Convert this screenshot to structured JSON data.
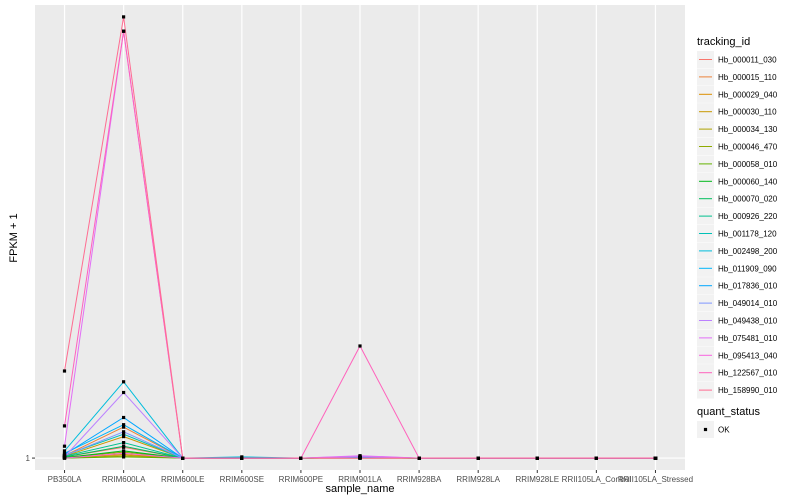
{
  "chart_data": {
    "type": "line",
    "xlabel": "sample_name",
    "ylabel": "FPKM + 1",
    "categories": [
      "PB350LA",
      "RRIM600LA",
      "RRIM600LE",
      "RRIM600SE",
      "RRIM600PE",
      "RRIM901LA",
      "RRIM928BA",
      "RRIM928LA",
      "RRIM928LE",
      "RRII105LA_Control",
      "RRII105LA_Stressed"
    ],
    "ylim": [
      0.5,
      20
    ],
    "y_ticks": [
      {
        "value": 1,
        "label": "1"
      }
    ],
    "grid": true,
    "legend_position": "right",
    "legend_title": "tracking_id",
    "shape_legend": {
      "title": "quant_status",
      "items": [
        {
          "label": "OK"
        }
      ]
    },
    "series": [
      {
        "name": "Hb_000011_030",
        "color": "#F8766D",
        "values": [
          1.05,
          1.45,
          1,
          1,
          1,
          1.01,
          1,
          1,
          1,
          1,
          1
        ]
      },
      {
        "name": "Hb_000015_110",
        "color": "#EC8239",
        "values": [
          1.1,
          2.3,
          1,
          1,
          1,
          1.02,
          1,
          1,
          1,
          1,
          1
        ]
      },
      {
        "name": "Hb_000029_040",
        "color": "#DB8E00",
        "values": [
          1.02,
          1.15,
          1,
          1,
          1,
          1.01,
          1,
          1,
          1,
          1,
          1
        ]
      },
      {
        "name": "Hb_000030_110",
        "color": "#C79800",
        "values": [
          1.08,
          1.9,
          1,
          1,
          1,
          1.02,
          1,
          1,
          1,
          1,
          1
        ]
      },
      {
        "name": "Hb_000034_130",
        "color": "#AEA200",
        "values": [
          1.0,
          1.1,
          1,
          1,
          1,
          1.0,
          1,
          1,
          1,
          1,
          1
        ]
      },
      {
        "name": "Hb_000046_470",
        "color": "#8FAA00",
        "values": [
          1.03,
          1.25,
          1,
          1,
          1,
          1.01,
          1,
          1,
          1,
          1,
          1
        ]
      },
      {
        "name": "Hb_000058_010",
        "color": "#64B200",
        "values": [
          1.0,
          1.05,
          1,
          1,
          1,
          1.0,
          1,
          1,
          1,
          1,
          1
        ]
      },
      {
        "name": "Hb_000060_140",
        "color": "#00B81B",
        "values": [
          1.02,
          1.3,
          1,
          1,
          1,
          1.01,
          1,
          1,
          1,
          1,
          1
        ]
      },
      {
        "name": "Hb_000070_020",
        "color": "#00BD5C",
        "values": [
          1.05,
          1.5,
          1,
          1,
          1,
          1.01,
          1,
          1,
          1,
          1,
          1
        ]
      },
      {
        "name": "Hb_000926_220",
        "color": "#00C08E",
        "values": [
          1.08,
          1.65,
          1,
          1,
          1,
          1.02,
          1,
          1,
          1,
          1,
          1
        ]
      },
      {
        "name": "Hb_001178_120",
        "color": "#00C1B7",
        "values": [
          1.12,
          2.0,
          1,
          1,
          1,
          1.02,
          1,
          1,
          1,
          1,
          1
        ]
      },
      {
        "name": "Hb_002498_200",
        "color": "#00BDDC",
        "values": [
          1.3,
          4.2,
          1,
          1.05,
          1,
          1.05,
          1,
          1,
          1,
          1,
          1
        ]
      },
      {
        "name": "Hb_011909_090",
        "color": "#00B5F9",
        "values": [
          1.2,
          2.4,
          1,
          1,
          1,
          1.03,
          1,
          1,
          1,
          1,
          1
        ]
      },
      {
        "name": "Hb_017836_010",
        "color": "#00A6FF",
        "values": [
          1.15,
          2.7,
          1,
          1,
          1,
          1.04,
          1,
          1,
          1,
          1,
          1
        ]
      },
      {
        "name": "Hb_049014_010",
        "color": "#7F96FF",
        "values": [
          1.1,
          2.1,
          1,
          1,
          1,
          1.06,
          1,
          1,
          1,
          1,
          1
        ]
      },
      {
        "name": "Hb_049438_010",
        "color": "#BC81FF",
        "values": [
          1.05,
          3.75,
          1,
          1,
          1,
          1.08,
          1,
          1,
          1,
          1,
          1
        ]
      },
      {
        "name": "Hb_075481_010",
        "color": "#E26EF7",
        "values": [
          1.5,
          18.9,
          1,
          1,
          1,
          1.1,
          1,
          1,
          1,
          1,
          1
        ]
      },
      {
        "name": "Hb_095413_040",
        "color": "#F863DF",
        "values": [
          1.0,
          1.2,
          1,
          1,
          1,
          1.0,
          1,
          1,
          1,
          1,
          1
        ]
      },
      {
        "name": "Hb_122567_010",
        "color": "#FF62BC",
        "values": [
          2.35,
          18.9,
          1,
          1,
          1,
          5.7,
          1,
          1,
          1,
          1,
          1
        ]
      },
      {
        "name": "Hb_158990_010",
        "color": "#FF6C91",
        "values": [
          4.65,
          19.5,
          1,
          1,
          1,
          1.0,
          1,
          1,
          1,
          1,
          1
        ]
      }
    ]
  }
}
